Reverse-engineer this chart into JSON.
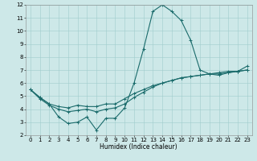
{
  "xlabel": "Humidex (Indice chaleur)",
  "ylabel": "",
  "xlim": [
    -0.5,
    23.5
  ],
  "ylim": [
    2,
    12
  ],
  "yticks": [
    2,
    3,
    4,
    5,
    6,
    7,
    8,
    9,
    10,
    11,
    12
  ],
  "xticks": [
    0,
    1,
    2,
    3,
    4,
    5,
    6,
    7,
    8,
    9,
    10,
    11,
    12,
    13,
    14,
    15,
    16,
    17,
    18,
    19,
    20,
    21,
    22,
    23
  ],
  "bg_color": "#cde8e8",
  "line_color": "#1a6b6b",
  "line1_x": [
    0,
    1,
    2,
    3,
    4,
    5,
    6,
    7,
    8,
    9,
    10,
    11,
    12,
    13,
    14,
    15,
    16,
    17,
    18,
    19,
    20,
    21,
    22,
    23
  ],
  "line1_y": [
    5.5,
    4.9,
    4.4,
    3.4,
    2.9,
    3.0,
    3.4,
    2.4,
    3.3,
    3.3,
    4.1,
    6.0,
    8.6,
    11.5,
    12.0,
    11.5,
    10.8,
    9.3,
    7.0,
    6.7,
    6.6,
    6.8,
    6.9,
    7.3
  ],
  "line2_x": [
    0,
    1,
    2,
    3,
    4,
    5,
    6,
    7,
    8,
    9,
    10,
    11,
    12,
    13,
    14,
    15,
    16,
    17,
    18,
    19,
    20,
    21,
    22,
    23
  ],
  "line2_y": [
    5.5,
    4.9,
    4.4,
    4.2,
    4.1,
    4.3,
    4.2,
    4.2,
    4.4,
    4.4,
    4.8,
    5.2,
    5.5,
    5.8,
    6.0,
    6.2,
    6.4,
    6.5,
    6.6,
    6.7,
    6.8,
    6.9,
    6.9,
    7.0
  ],
  "line3_x": [
    0,
    1,
    2,
    3,
    4,
    5,
    6,
    7,
    8,
    9,
    10,
    11,
    12,
    13,
    14,
    15,
    16,
    17,
    18,
    19,
    20,
    21,
    22,
    23
  ],
  "line3_y": [
    5.5,
    4.8,
    4.3,
    4.0,
    3.8,
    3.9,
    4.0,
    3.8,
    4.0,
    4.1,
    4.4,
    4.9,
    5.3,
    5.7,
    6.0,
    6.2,
    6.4,
    6.5,
    6.6,
    6.7,
    6.7,
    6.8,
    6.9,
    7.0
  ],
  "xlabel_fontsize": 5.5,
  "tick_fontsize": 5,
  "linewidth": 0.8,
  "markersize": 2.5
}
